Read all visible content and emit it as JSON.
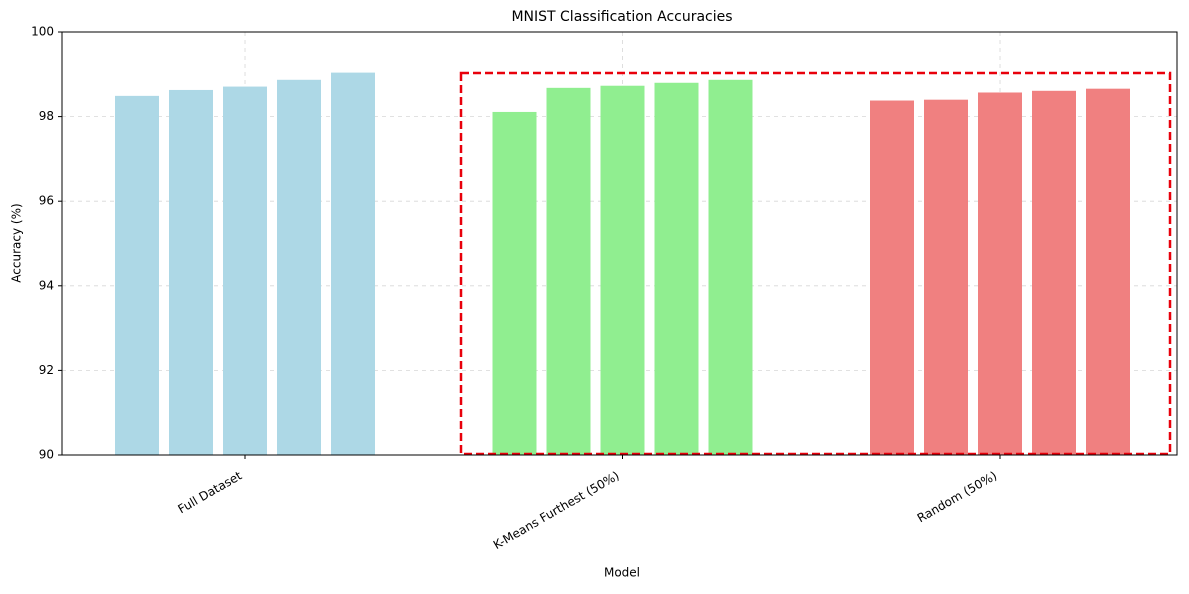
{
  "chart_data": {
    "type": "bar",
    "title": "MNIST Classification Accuracies",
    "x_label": "Model",
    "y_label": "Accuracy (%)",
    "categories": [
      "Full Dataset",
      "K-Means Furthest (50%)",
      "Random (50%)"
    ],
    "values": [
      [
        98.49,
        98.63,
        98.71,
        98.87,
        99.04
      ],
      [
        98.11,
        98.68,
        98.73,
        98.8,
        98.87
      ],
      [
        98.38,
        98.4,
        98.57,
        98.61,
        98.66
      ]
    ],
    "colors": [
      "#add8e6",
      "#90ee90",
      "#f08080"
    ],
    "ylim": [
      90,
      100
    ],
    "yticks": [
      90,
      92,
      94,
      96,
      98,
      100
    ],
    "grid": true
  }
}
